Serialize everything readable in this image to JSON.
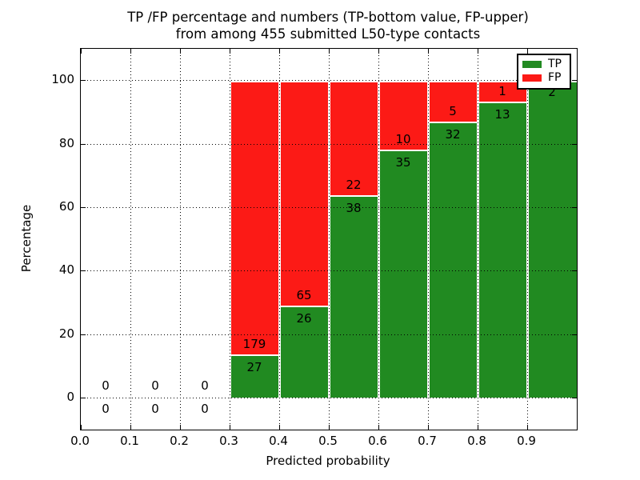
{
  "title": {
    "line1": "TP /FP percentage and numbers (TP-bottom value, FP-upper)",
    "line2": "from among 455 submitted L50-type contacts"
  },
  "axes": {
    "xlabel": "Predicted probability",
    "ylabel": "Percentage",
    "x_tick_labels": [
      "0.0",
      "0.1",
      "0.2",
      "0.3",
      "0.4",
      "0.5",
      "0.6",
      "0.7",
      "0.8",
      "0.9"
    ],
    "x_tick_values": [
      0.0,
      0.1,
      0.2,
      0.3,
      0.4,
      0.5,
      0.6,
      0.7,
      0.8,
      0.9
    ],
    "y_tick_labels": [
      "0",
      "20",
      "40",
      "60",
      "80",
      "100"
    ],
    "y_tick_values": [
      0,
      20,
      40,
      60,
      80,
      100
    ]
  },
  "legend": {
    "items": [
      {
        "label": "TP",
        "color": "#218a21"
      },
      {
        "label": "FP",
        "color": "#fc1a16"
      }
    ],
    "position": "upper right"
  },
  "colors": {
    "tp": "#218a21",
    "fp": "#fc1a16",
    "grid": "#000000",
    "frame": "#000000",
    "background": "#ffffff",
    "bar_edge": "#ffffff"
  },
  "chart_data": {
    "type": "bar",
    "stacked": true,
    "percentage_stacked": true,
    "title": "TP /FP percentage and numbers (TP-bottom value, FP-upper) from among 455 submitted L50-type contacts",
    "xlabel": "Predicted probability",
    "ylabel": "Percentage",
    "xlim": [
      0.0,
      1.0
    ],
    "ylim": [
      -10,
      110
    ],
    "grid": true,
    "legend_position": "upper right",
    "total_contacts": 455,
    "bin_edges": [
      0.0,
      0.1,
      0.2,
      0.3,
      0.4,
      0.5,
      0.6,
      0.7,
      0.8,
      0.9,
      1.0
    ],
    "series": [
      {
        "name": "TP",
        "color": "#218a21",
        "counts": [
          0,
          0,
          0,
          27,
          26,
          38,
          35,
          32,
          13,
          2
        ]
      },
      {
        "name": "FP",
        "color": "#fc1a16",
        "counts": [
          0,
          0,
          0,
          179,
          65,
          22,
          10,
          5,
          1,
          0
        ]
      }
    ],
    "tp_percent_of_bin": [
      null,
      null,
      null,
      13.1,
      28.6,
      63.3,
      77.8,
      86.5,
      92.9,
      100.0
    ]
  }
}
